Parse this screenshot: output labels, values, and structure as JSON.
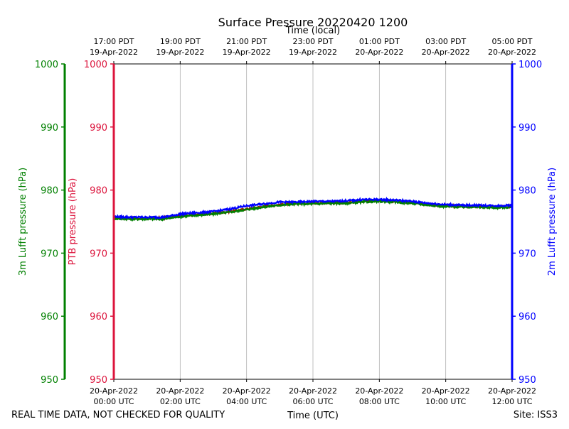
{
  "chart_data": {
    "type": "line",
    "title": "Surface Pressure 20220420 1200",
    "top_axis_label": "Time (local)",
    "bottom_axis_label": "Time (UTC)",
    "footer_left": "REAL TIME DATA, NOT CHECKED FOR QUALITY",
    "footer_right": "Site: ISS3",
    "x_range_utc_hours": [
      0,
      12
    ],
    "x_ticks_utc": [
      {
        "hour": 0,
        "date": "20-Apr-2022",
        "time": "00:00 UTC"
      },
      {
        "hour": 2,
        "date": "20-Apr-2022",
        "time": "02:00 UTC"
      },
      {
        "hour": 4,
        "date": "20-Apr-2022",
        "time": "04:00 UTC"
      },
      {
        "hour": 6,
        "date": "20-Apr-2022",
        "time": "06:00 UTC"
      },
      {
        "hour": 8,
        "date": "20-Apr-2022",
        "time": "08:00 UTC"
      },
      {
        "hour": 10,
        "date": "20-Apr-2022",
        "time": "10:00 UTC"
      },
      {
        "hour": 12,
        "date": "20-Apr-2022",
        "time": "12:00 UTC"
      }
    ],
    "x_ticks_local": [
      {
        "hour": 0,
        "time": "17:00 PDT",
        "date": "19-Apr-2022"
      },
      {
        "hour": 2,
        "time": "19:00 PDT",
        "date": "19-Apr-2022"
      },
      {
        "hour": 4,
        "time": "21:00 PDT",
        "date": "19-Apr-2022"
      },
      {
        "hour": 6,
        "time": "23:00 PDT",
        "date": "19-Apr-2022"
      },
      {
        "hour": 8,
        "time": "01:00 PDT",
        "date": "20-Apr-2022"
      },
      {
        "hour": 10,
        "time": "03:00 PDT",
        "date": "20-Apr-2022"
      },
      {
        "hour": 12,
        "time": "05:00 PDT",
        "date": "20-Apr-2022"
      }
    ],
    "y_axes": [
      {
        "id": "lufft3m",
        "label": "3m Lufft pressure (hPa)",
        "color": "#008000",
        "ylim": [
          950,
          1000
        ],
        "ticks": [
          950,
          960,
          970,
          980,
          990,
          1000
        ]
      },
      {
        "id": "ptb",
        "label": "PTB pressure (hPa)",
        "color": "#dc143c",
        "ylim": [
          950,
          1000
        ],
        "ticks": [
          950,
          960,
          970,
          980,
          990,
          1000
        ]
      },
      {
        "id": "lufft2m",
        "label": "2m Lufft pressure (hPa)",
        "color": "#0000ff",
        "ylim": [
          950,
          1000
        ],
        "ticks": [
          950,
          960,
          970,
          980,
          990,
          1000
        ]
      }
    ],
    "grid": "vertical",
    "x": [
      0,
      0.5,
      1,
      1.5,
      2,
      2.5,
      3,
      3.5,
      4,
      4.5,
      5,
      5.5,
      6,
      6.5,
      7,
      7.5,
      8,
      8.5,
      9,
      9.5,
      10,
      10.5,
      11,
      11.5,
      12
    ],
    "series": [
      {
        "axis": "ptb",
        "color": "#8b2500",
        "values": [
          975.6,
          975.5,
          975.5,
          975.6,
          975.9,
          976.1,
          976.3,
          976.6,
          977.0,
          977.4,
          977.7,
          977.9,
          977.9,
          978.0,
          978.0,
          978.2,
          978.3,
          978.2,
          978.0,
          977.7,
          977.5,
          977.4,
          977.4,
          977.3,
          977.4
        ]
      },
      {
        "axis": "lufft3m",
        "color": "#008000",
        "values": [
          975.5,
          975.4,
          975.4,
          975.4,
          975.8,
          976.0,
          976.2,
          976.5,
          976.9,
          977.3,
          977.6,
          977.8,
          977.8,
          977.9,
          977.9,
          978.1,
          978.2,
          978.1,
          977.9,
          977.6,
          977.4,
          977.3,
          977.3,
          977.2,
          977.3
        ]
      },
      {
        "axis": "lufft2m",
        "color": "#0000ff",
        "values": [
          975.8,
          975.7,
          975.7,
          975.7,
          976.2,
          976.4,
          976.6,
          977.0,
          977.5,
          977.8,
          978.1,
          978.1,
          978.2,
          978.2,
          978.3,
          978.5,
          978.5,
          978.4,
          978.2,
          977.9,
          977.7,
          977.6,
          977.6,
          977.5,
          977.6
        ]
      }
    ]
  }
}
